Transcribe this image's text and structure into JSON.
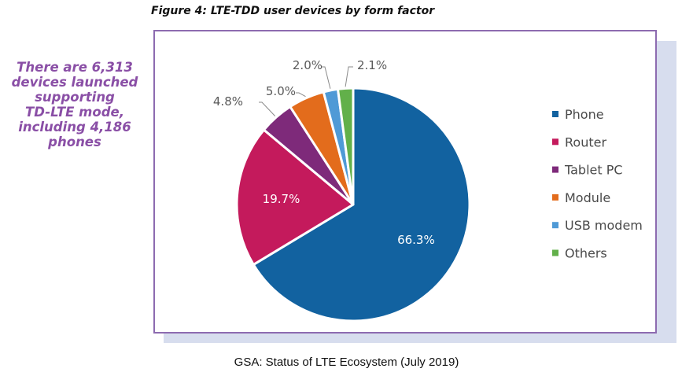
{
  "figure_title": "Figure 4: LTE-TDD user devices by form factor",
  "callout_lines": [
    "There are 6,313",
    "devices launched",
    "supporting",
    "TD-LTE mode,",
    "including 4,186",
    "phones"
  ],
  "source": "GSA: Status of LTE Ecosystem (July 2019)",
  "colors": {
    "callout": "#8a4fa6",
    "frame": "#8d6bb0"
  },
  "chart_data": {
    "type": "pie",
    "title": "",
    "categories": [
      "Phone",
      "Router",
      "Tablet PC",
      "Module",
      "USB modem",
      "Others"
    ],
    "values": [
      66.3,
      19.7,
      4.8,
      5.0,
      2.0,
      2.1
    ],
    "labels": [
      "66.3%",
      "19.7%",
      "4.8%",
      "5.0%",
      "2.0%",
      "2.1%"
    ],
    "colors": [
      "#1262a0",
      "#c41a5c",
      "#7e2a7a",
      "#e36c1c",
      "#4f9ad6",
      "#62b04a"
    ],
    "legend_position": "right"
  }
}
